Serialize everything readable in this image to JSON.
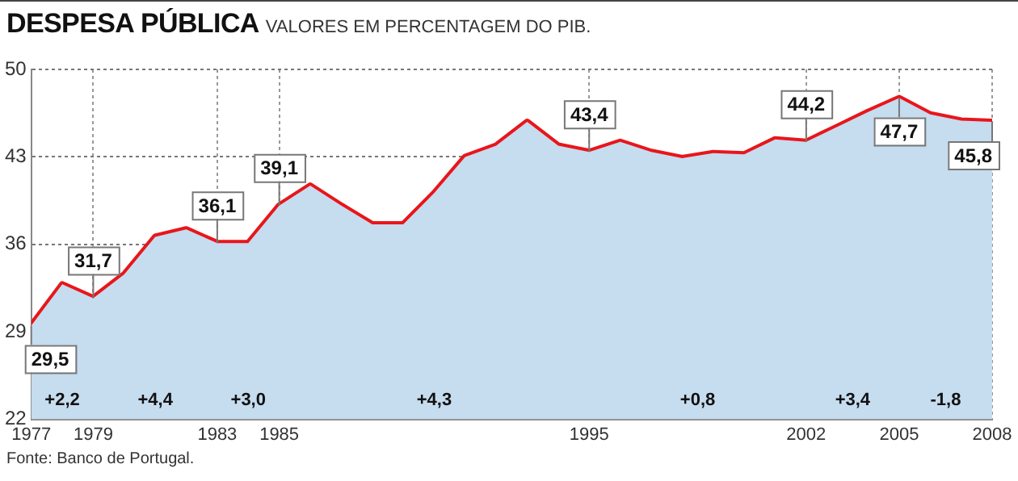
{
  "chart_data": {
    "type": "area",
    "title": "DESPESA PÚBLICA",
    "subtitle": "VALORES EM PERCENTAGEM DO PIB.",
    "x": [
      1977,
      1978,
      1979,
      1980,
      1981,
      1982,
      1983,
      1984,
      1985,
      1986,
      1987,
      1988,
      1989,
      1990,
      1991,
      1992,
      1993,
      1994,
      1995,
      1996,
      1997,
      1998,
      1999,
      2000,
      2001,
      2002,
      2003,
      2004,
      2005,
      2006,
      2007,
      2008
    ],
    "series": [
      {
        "color": "#c6dcef",
        "values": [
          29.5,
          32.8,
          31.7,
          33.6,
          36.6,
          37.2,
          36.1,
          36.1,
          39.1,
          40.7,
          39.1,
          37.6,
          37.6,
          40.1,
          43.0,
          43.9,
          45.8,
          43.9,
          43.4,
          44.2,
          43.4,
          42.9,
          43.3,
          43.2,
          44.4,
          44.2,
          45.4,
          46.6,
          47.7,
          46.4,
          45.9,
          45.8
        ]
      },
      {
        "type": "line",
        "color": "#e8161b",
        "values": [
          29.5,
          32.8,
          31.7,
          33.6,
          36.6,
          37.2,
          36.1,
          36.1,
          39.1,
          40.7,
          39.1,
          37.6,
          37.6,
          40.1,
          43.0,
          43.9,
          45.8,
          43.9,
          43.4,
          44.2,
          43.4,
          42.9,
          43.3,
          43.2,
          44.4,
          44.2,
          45.4,
          46.6,
          47.7,
          46.4,
          45.9,
          45.8
        ],
        "value_labels": [
          "29,5",
          null,
          "31,7",
          null,
          null,
          null,
          "36,1",
          null,
          "39,1",
          null,
          null,
          null,
          null,
          null,
          null,
          null,
          null,
          null,
          "43,4",
          null,
          null,
          null,
          null,
          null,
          null,
          "44,2",
          null,
          null,
          "47,7",
          null,
          null,
          "45,8"
        ]
      }
    ],
    "xlim": [
      1977,
      2008
    ],
    "xticks": [
      1977,
      1979,
      1983,
      1985,
      1995,
      2002,
      2005,
      2008
    ],
    "ylim": [
      22,
      50
    ],
    "yticks": [
      22,
      29,
      36,
      43,
      50
    ],
    "grid": true,
    "legend": false,
    "marker": "none",
    "line_style": "solid",
    "annotations": [
      "+2,2",
      "+4,4",
      "+3,0",
      "+4,3",
      "+0,8",
      "+3,4",
      "-1,8",
      "Fonte: Banco de Portugal."
    ]
  }
}
